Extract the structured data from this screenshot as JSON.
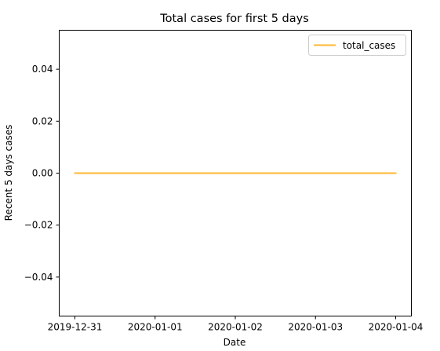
{
  "chart_data": {
    "type": "line",
    "title": "Total cases for first 5 days",
    "xlabel": "Date",
    "ylabel": "Recent 5 days cases",
    "x": [
      "2019-12-31",
      "2020-01-01",
      "2020-01-02",
      "2020-01-03",
      "2020-01-04"
    ],
    "x_tick_labels": [
      "2019-12-31",
      "2020-01-01",
      "2020-01-02",
      "2020-01-03",
      "2020-01-04"
    ],
    "ylim": [
      -0.055,
      0.055
    ],
    "y_ticks": [
      -0.04,
      -0.02,
      0.0,
      0.02,
      0.04
    ],
    "y_tick_labels": [
      "−0.04",
      "−0.02",
      "0.00",
      "0.02",
      "0.04"
    ],
    "series": [
      {
        "name": "total_cases",
        "values": [
          0,
          0,
          0,
          0,
          0
        ],
        "color": "#ffb732"
      }
    ],
    "grid": false,
    "legend_position": "top-right"
  }
}
